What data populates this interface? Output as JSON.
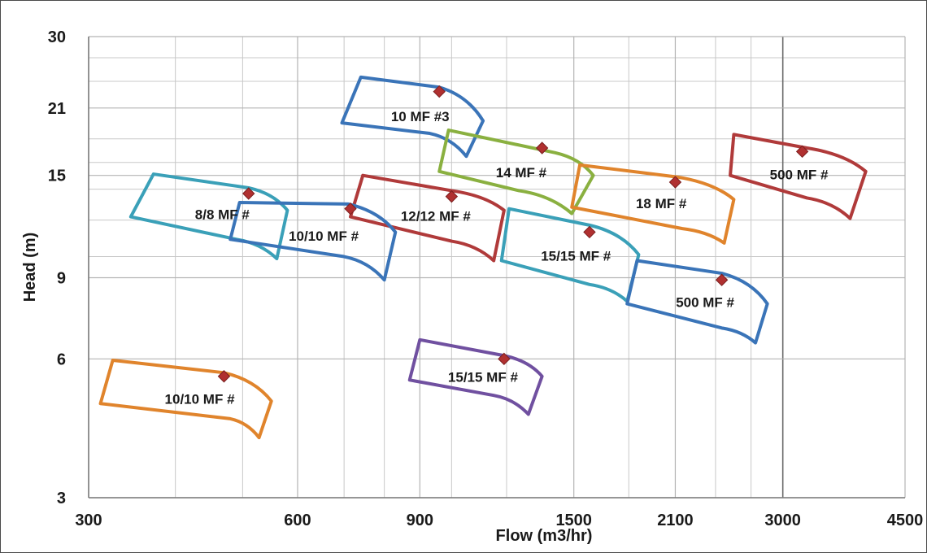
{
  "chart_data": {
    "type": "scatter",
    "subtype": "pump-selection-chart",
    "x_scale": "log",
    "y_scale": "log",
    "xlabel": "Flow (m3/hr)",
    "ylabel": "Head (m)",
    "xlim": [
      300,
      4500
    ],
    "ylim": [
      3,
      30
    ],
    "x_ticks": [
      300,
      600,
      900,
      1500,
      2100,
      3000,
      4500
    ],
    "y_ticks": [
      3,
      6,
      9,
      15,
      21,
      30
    ],
    "x_minor_gridlines": [
      400,
      500,
      700,
      800,
      1000,
      1200,
      1800,
      2400,
      2700
    ],
    "y_minor_gridlines": [
      10,
      12,
      14,
      16,
      18,
      24,
      27
    ],
    "grid": true,
    "marker_color": "#b03030",
    "regions": [
      {
        "label": "10 MF #3",
        "color": "#3a74b8",
        "marker": [
          960,
          22.8
        ],
        "outline": [
          [
            695,
            19.5
          ],
          [
            740,
            24.5
          ],
          [
            960,
            23.3
          ],
          [
            1110,
            19.7
          ],
          [
            1050,
            16.5
          ],
          [
            930,
            18.5
          ]
        ]
      },
      {
        "label": "14 MF #",
        "color": "#8ab040",
        "marker": [
          1350,
          17.2
        ],
        "outline": [
          [
            960,
            15.3
          ],
          [
            990,
            18.8
          ],
          [
            1410,
            16.8
          ],
          [
            1600,
            15.0
          ],
          [
            1490,
            12.4
          ],
          [
            1250,
            13.9
          ]
        ]
      },
      {
        "label": "500 MF #",
        "color": "#b03a3a",
        "marker": [
          3200,
          16.9
        ],
        "outline": [
          [
            2520,
            15.0
          ],
          [
            2550,
            18.4
          ],
          [
            3250,
            17.2
          ],
          [
            3950,
            15.3
          ],
          [
            3750,
            12.1
          ],
          [
            3250,
            13.4
          ]
        ]
      },
      {
        "label": "18 MF #",
        "color": "#e0842c",
        "marker": [
          2100,
          14.5
        ],
        "outline": [
          [
            1490,
            12.8
          ],
          [
            1530,
            15.8
          ],
          [
            2100,
            14.9
          ],
          [
            2550,
            13.3
          ],
          [
            2470,
            10.7
          ],
          [
            2150,
            11.5
          ]
        ]
      },
      {
        "label": "12/12 MF #",
        "color": "#b03a3a",
        "marker": [
          1000,
          13.5
        ],
        "outline": [
          [
            715,
            12.2
          ],
          [
            745,
            15.0
          ],
          [
            1000,
            13.9
          ],
          [
            1190,
            12.6
          ],
          [
            1150,
            9.8
          ],
          [
            1000,
            10.8
          ]
        ]
      },
      {
        "label": "8/8 MF #",
        "color": "#3aa0b8",
        "marker": [
          510,
          13.7
        ],
        "outline": [
          [
            345,
            12.2
          ],
          [
            372,
            15.1
          ],
          [
            510,
            14.1
          ],
          [
            580,
            12.6
          ],
          [
            560,
            9.9
          ],
          [
            490,
            10.9
          ]
        ]
      },
      {
        "label": "10/10 MF #",
        "color": "#3a74b8",
        "marker": [
          715,
          12.7
        ],
        "outline": [
          [
            480,
            10.9
          ],
          [
            495,
            13.1
          ],
          [
            710,
            13.0
          ],
          [
            830,
            11.3
          ],
          [
            800,
            8.9
          ],
          [
            700,
            10.0
          ]
        ]
      },
      {
        "label": "15/15 MF #",
        "color": "#3aa0b8",
        "marker": [
          1580,
          11.3
        ],
        "outline": [
          [
            1180,
            9.8
          ],
          [
            1210,
            12.7
          ],
          [
            1580,
            11.7
          ],
          [
            1860,
            10.1
          ],
          [
            1790,
            8.0
          ],
          [
            1580,
            8.7
          ]
        ]
      },
      {
        "label": "500 MF #",
        "color": "#3a74b8",
        "marker": [
          2450,
          8.9
        ],
        "outline": [
          [
            1790,
            7.9
          ],
          [
            1850,
            9.8
          ],
          [
            2450,
            9.2
          ],
          [
            2850,
            7.9
          ],
          [
            2740,
            6.5
          ],
          [
            2450,
            7.0
          ]
        ]
      },
      {
        "label": "15/15 MF #",
        "color": "#7050a0",
        "marker": [
          1190,
          6.0
        ],
        "outline": [
          [
            870,
            5.4
          ],
          [
            900,
            6.6
          ],
          [
            1190,
            6.1
          ],
          [
            1350,
            5.5
          ],
          [
            1290,
            4.55
          ],
          [
            1150,
            5.0
          ]
        ]
      },
      {
        "label": "10/10 MF #",
        "color": "#e0842c",
        "marker": [
          470,
          5.5
        ],
        "outline": [
          [
            312,
            4.8
          ],
          [
            325,
            5.96
          ],
          [
            470,
            5.6
          ],
          [
            550,
            4.86
          ],
          [
            528,
            4.05
          ],
          [
            480,
            4.45
          ]
        ]
      }
    ]
  }
}
